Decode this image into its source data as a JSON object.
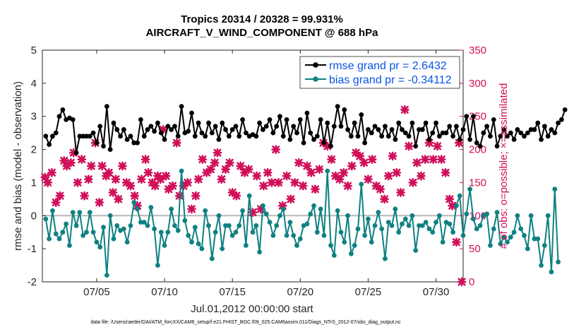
{
  "chart_data": {
    "type": "line",
    "title": "Tropics 20314 / 20328 = 99.931%",
    "subtitle": "AIRCRAFT_V_WIND_COMPONENT @ 688 hPa",
    "xlabel": "Jul.01,2012 00:00:00 start",
    "ylabel": "rmse and bias (model - observation)",
    "ylabel_right": "# of obs: o=possible; ×=assimilated",
    "ylim": [
      -2,
      5
    ],
    "ylim_right": [
      0,
      350
    ],
    "xlim": [
      1,
      32
    ],
    "yticks": [
      "-2",
      "-1",
      "0",
      "1",
      "2",
      "3",
      "4",
      "5"
    ],
    "yticks_right": [
      "0",
      "50",
      "100",
      "150",
      "200",
      "250",
      "300",
      "350"
    ],
    "xticks": [
      {
        "x": 5,
        "label": "07/05"
      },
      {
        "x": 10,
        "label": "07/10"
      },
      {
        "x": 15,
        "label": "07/15"
      },
      {
        "x": 20,
        "label": "07/20"
      },
      {
        "x": 25,
        "label": "07/25"
      },
      {
        "x": 30,
        "label": "07/30"
      }
    ],
    "reference_line": 0,
    "x_start": 1.25,
    "x_step": 0.25,
    "series": [
      {
        "name": "rmse grand pr = 2.6432",
        "color": "#000000",
        "values": [
          2.4,
          2.15,
          2.4,
          2.5,
          3.0,
          3.2,
          2.9,
          2.95,
          2.9,
          1.9,
          2.4,
          2.4,
          2.4,
          2.4,
          2.5,
          2.2,
          2.7,
          2.1,
          3.3,
          2.0,
          2.8,
          2.6,
          2.4,
          2.6,
          2.3,
          2.4,
          2.2,
          2.2,
          2.9,
          2.4,
          2.6,
          2.7,
          2.55,
          2.8,
          2.5,
          2.3,
          2.7,
          2.6,
          2.7,
          2.4,
          3.3,
          2.5,
          2.55,
          3.1,
          2.4,
          2.8,
          2.5,
          2.4,
          2.8,
          2.5,
          2.7,
          2.3,
          2.8,
          2.6,
          2.4,
          2.6,
          2.7,
          2.4,
          2.9,
          2.5,
          2.4,
          2.45,
          2.4,
          2.8,
          2.6,
          2.7,
          2.9,
          2.5,
          2.7,
          3.0,
          2.4,
          2.9,
          2.3,
          2.7,
          2.5,
          2.9,
          2.2,
          3.1,
          2.5,
          2.3,
          2.4,
          2.9,
          2.2,
          2.8,
          2.1,
          2.7,
          3.3,
          2.7,
          3.2,
          2.6,
          2.4,
          2.8,
          2.4,
          3.05,
          2.2,
          2.6,
          2.5,
          2.7,
          2.6,
          2.4,
          2.7,
          2.4,
          2.6,
          2.3,
          2.8,
          2.6,
          2.5,
          2.4,
          2.8,
          2.1,
          2.6,
          2.6,
          2.8,
          2.3,
          2.5,
          2.8,
          2.4,
          2.5,
          2.5,
          2.7,
          2.4,
          2.7,
          2.3,
          2.6,
          3.0,
          2.3,
          3.0,
          2.2,
          2.1,
          2.5,
          2.7,
          2.4,
          2.9,
          2.1,
          2.4,
          2.6,
          2.4,
          2.5,
          2.3,
          2.6,
          2.5,
          2.4,
          2.5,
          2.6,
          2.6,
          2.8,
          2.3,
          2.7,
          2.4,
          2.6,
          2.5,
          2.8,
          2.9,
          3.2
        ]
      },
      {
        "name": "bias grand pr = -0.34112",
        "color": "#0f8181",
        "values": [
          -0.1,
          -0.7,
          0.15,
          -0.55,
          -0.7,
          -0.5,
          -0.25,
          -0.9,
          0.1,
          -0.3,
          0.1,
          -0.6,
          -0.5,
          0.1,
          -0.5,
          -0.8,
          -0.95,
          -0.35,
          -1.8,
          0.0,
          -0.7,
          -0.3,
          -0.45,
          -0.4,
          -0.8,
          -0.3,
          0.4,
          0.2,
          -0.2,
          -0.2,
          -0.3,
          0.25,
          -0.4,
          -1.5,
          -0.5,
          -0.9,
          -0.5,
          0.2,
          -0.3,
          -0.45,
          1.35,
          -0.15,
          -0.6,
          -0.8,
          -0.35,
          -0.85,
          -1.0,
          0.15,
          -0.3,
          -1.3,
          -0.5,
          0.0,
          -1.0,
          -0.3,
          -0.3,
          -0.6,
          -0.5,
          -0.3,
          0.15,
          -0.9,
          0.6,
          -0.5,
          -0.3,
          -1.1,
          0.3,
          0.05,
          -0.2,
          -0.6,
          -0.3,
          0.0,
          0.2,
          -0.6,
          -0.2,
          -0.6,
          -0.9,
          -0.7,
          -0.3,
          -0.25,
          0.05,
          0.3,
          -0.5,
          0.2,
          -0.6,
          1.35,
          -0.9,
          -1.2,
          0.15,
          -0.5,
          -0.8,
          0.0,
          -1.15,
          -0.9,
          -0.4,
          0.95,
          -0.6,
          -0.1,
          -0.8,
          -0.3,
          0.1,
          -0.4,
          -1.3,
          -0.2,
          -0.3,
          0.2,
          -0.5,
          -0.25,
          -0.1,
          -0.3,
          0.0,
          -1.05,
          -0.3,
          -0.3,
          -0.2,
          -0.4,
          -0.5,
          -0.2,
          0.0,
          -0.8,
          -0.2,
          -0.25,
          -0.5,
          0.3,
          0.6,
          -0.6,
          0.05,
          0.8,
          -0.1,
          -0.4,
          -0.3,
          0.0,
          0.05,
          -0.9,
          -0.4,
          0.1,
          -0.85,
          -0.65,
          -0.8,
          -0.65,
          -0.5,
          0.0,
          -0.4,
          -0.6,
          -1.0,
          0.0,
          -0.7,
          -0.7,
          -1.5,
          -0.9,
          0.0,
          -1.7,
          0.8,
          -1.4
        ]
      }
    ],
    "obs_possible": [
      0,
      0,
      0,
      0,
      0,
      0,
      0,
      0,
      0,
      0,
      0,
      0,
      0,
      0,
      0,
      0,
      0,
      0,
      0,
      0,
      0,
      0,
      0,
      0,
      0,
      0,
      0,
      0,
      0,
      0,
      0,
      0,
      0,
      0,
      0,
      0,
      0,
      0,
      0,
      0,
      0,
      0,
      0,
      0,
      0,
      0,
      0,
      0,
      0,
      0,
      0,
      0,
      0,
      0,
      0,
      0,
      0,
      0,
      0,
      0,
      0,
      0,
      0,
      0,
      0,
      0,
      0,
      0,
      0,
      0,
      0,
      0,
      0,
      0,
      0,
      0,
      0,
      0,
      0,
      0,
      0,
      0,
      0,
      0,
      0,
      0,
      0,
      0,
      0,
      0,
      0,
      0,
      0,
      0,
      0,
      0,
      0,
      0,
      0,
      0,
      0,
      0,
      0,
      0,
      0,
      0,
      0,
      0,
      0,
      0,
      0,
      0,
      0,
      0,
      0,
      0,
      0,
      0,
      0,
      0,
      0,
      0,
      0,
      0,
      0,
      0,
      0,
      0,
      0,
      0,
      0,
      0,
      0,
      0,
      0,
      0,
      0,
      0,
      0,
      0,
      0,
      0,
      0,
      0,
      0,
      0,
      0,
      0,
      0,
      0,
      0,
      0
    ],
    "obs_assimilated": [
      {
        "x": 1.2,
        "y": 158
      },
      {
        "x": 1.4,
        "y": 150
      },
      {
        "x": 1.7,
        "y": 165
      },
      {
        "x": 2.0,
        "y": 120
      },
      {
        "x": 2.3,
        "y": 130
      },
      {
        "x": 2.6,
        "y": 183
      },
      {
        "x": 2.8,
        "y": 175
      },
      {
        "x": 3.1,
        "y": 180
      },
      {
        "x": 3.3,
        "y": 195
      },
      {
        "x": 3.6,
        "y": 150
      },
      {
        "x": 3.9,
        "y": 185
      },
      {
        "x": 4.1,
        "y": 130
      },
      {
        "x": 4.4,
        "y": 155
      },
      {
        "x": 4.6,
        "y": 175
      },
      {
        "x": 4.9,
        "y": 210
      },
      {
        "x": 5.2,
        "y": 120
      },
      {
        "x": 5.4,
        "y": 175
      },
      {
        "x": 5.7,
        "y": 160
      },
      {
        "x": 5.9,
        "y": 165
      },
      {
        "x": 6.2,
        "y": 135
      },
      {
        "x": 6.4,
        "y": 155
      },
      {
        "x": 6.6,
        "y": 125
      },
      {
        "x": 6.9,
        "y": 175
      },
      {
        "x": 7.2,
        "y": 150
      },
      {
        "x": 7.5,
        "y": 145
      },
      {
        "x": 7.8,
        "y": 130
      },
      {
        "x": 8.0,
        "y": 115
      },
      {
        "x": 8.3,
        "y": 155
      },
      {
        "x": 8.6,
        "y": 185
      },
      {
        "x": 8.8,
        "y": 165
      },
      {
        "x": 9.1,
        "y": 150
      },
      {
        "x": 9.3,
        "y": 145
      },
      {
        "x": 9.5,
        "y": 160
      },
      {
        "x": 9.7,
        "y": 155
      },
      {
        "x": 9.9,
        "y": 230
      },
      {
        "x": 10.1,
        "y": 160
      },
      {
        "x": 10.3,
        "y": 140
      },
      {
        "x": 10.6,
        "y": 145
      },
      {
        "x": 10.9,
        "y": 210
      },
      {
        "x": 11.1,
        "y": 130
      },
      {
        "x": 11.4,
        "y": 145
      },
      {
        "x": 11.7,
        "y": 150
      },
      {
        "x": 12.0,
        "y": 110
      },
      {
        "x": 12.3,
        "y": 130
      },
      {
        "x": 12.5,
        "y": 155
      },
      {
        "x": 12.8,
        "y": 185
      },
      {
        "x": 13.1,
        "y": 165
      },
      {
        "x": 13.4,
        "y": 170
      },
      {
        "x": 13.7,
        "y": 180
      },
      {
        "x": 13.9,
        "y": 195
      },
      {
        "x": 14.2,
        "y": 155
      },
      {
        "x": 14.5,
        "y": 170
      },
      {
        "x": 14.8,
        "y": 180
      },
      {
        "x": 15.0,
        "y": 135
      },
      {
        "x": 15.3,
        "y": 130
      },
      {
        "x": 15.6,
        "y": 175
      },
      {
        "x": 15.9,
        "y": 165
      },
      {
        "x": 16.2,
        "y": 170
      },
      {
        "x": 16.5,
        "y": 105
      },
      {
        "x": 16.8,
        "y": 160
      },
      {
        "x": 17.1,
        "y": 110
      },
      {
        "x": 17.3,
        "y": 145
      },
      {
        "x": 17.6,
        "y": 165
      },
      {
        "x": 17.9,
        "y": 150
      },
      {
        "x": 18.2,
        "y": 200
      },
      {
        "x": 18.4,
        "y": 150
      },
      {
        "x": 18.7,
        "y": 115
      },
      {
        "x": 19.0,
        "y": 160
      },
      {
        "x": 19.3,
        "y": 125
      },
      {
        "x": 19.6,
        "y": 150
      },
      {
        "x": 19.9,
        "y": 180
      },
      {
        "x": 20.2,
        "y": 145
      },
      {
        "x": 20.5,
        "y": 175
      },
      {
        "x": 20.8,
        "y": 165
      },
      {
        "x": 21.1,
        "y": 140
      },
      {
        "x": 21.4,
        "y": 170
      },
      {
        "x": 21.7,
        "y": 210
      },
      {
        "x": 22.0,
        "y": 205
      },
      {
        "x": 22.3,
        "y": 185
      },
      {
        "x": 22.6,
        "y": 160
      },
      {
        "x": 22.9,
        "y": 155
      },
      {
        "x": 23.2,
        "y": 165
      },
      {
        "x": 23.5,
        "y": 145
      },
      {
        "x": 23.8,
        "y": 175
      },
      {
        "x": 24.1,
        "y": 195
      },
      {
        "x": 24.4,
        "y": 190
      },
      {
        "x": 24.7,
        "y": 180
      },
      {
        "x": 25.0,
        "y": 155
      },
      {
        "x": 25.3,
        "y": 185
      },
      {
        "x": 25.6,
        "y": 145
      },
      {
        "x": 25.9,
        "y": 140
      },
      {
        "x": 26.2,
        "y": 125
      },
      {
        "x": 26.5,
        "y": 160
      },
      {
        "x": 26.8,
        "y": 190
      },
      {
        "x": 27.1,
        "y": 165
      },
      {
        "x": 27.4,
        "y": 135
      },
      {
        "x": 27.7,
        "y": 260
      },
      {
        "x": 28.0,
        "y": 205
      },
      {
        "x": 28.3,
        "y": 150
      },
      {
        "x": 28.6,
        "y": 180
      },
      {
        "x": 28.9,
        "y": 160
      },
      {
        "x": 29.2,
        "y": 185
      },
      {
        "x": 29.5,
        "y": 210
      },
      {
        "x": 29.8,
        "y": 185
      },
      {
        "x": 30.1,
        "y": 205
      },
      {
        "x": 30.4,
        "y": 185
      },
      {
        "x": 30.7,
        "y": 165
      },
      {
        "x": 31.0,
        "y": 125
      },
      {
        "x": 31.2,
        "y": 115
      },
      {
        "x": 31.5,
        "y": 60
      },
      {
        "x": 31.7,
        "y": 210
      }
    ],
    "obs_end_marker": {
      "x": 31.9,
      "y": 0
    }
  }
}
